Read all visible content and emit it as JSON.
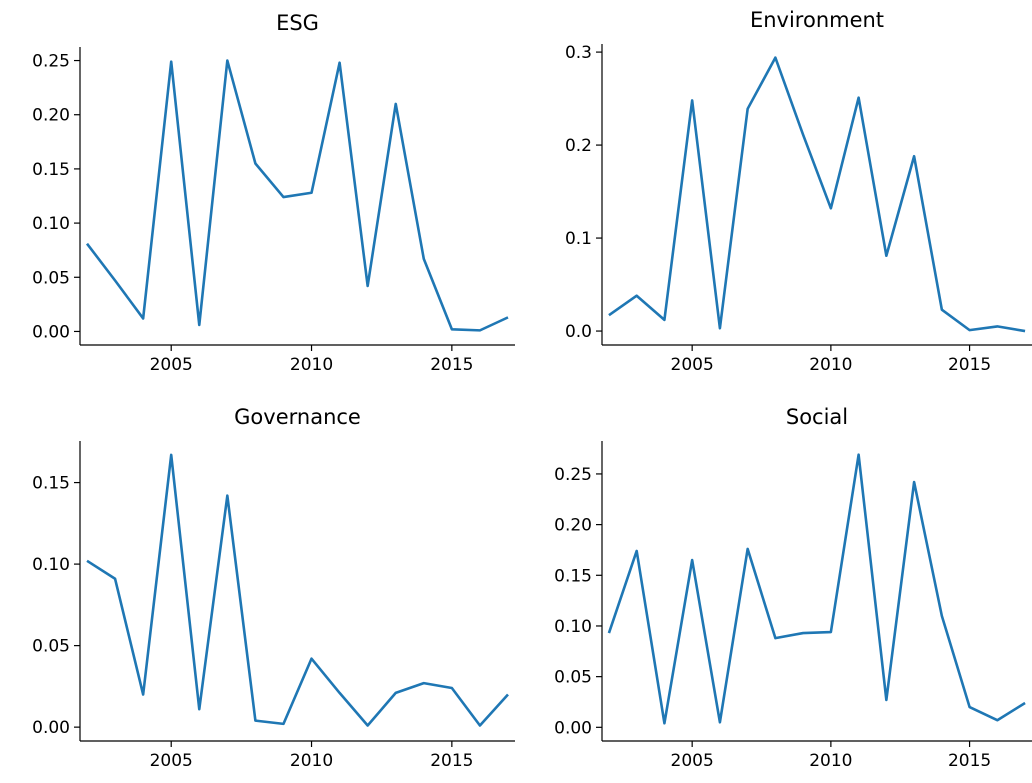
{
  "chart_data": [
    {
      "type": "line",
      "title": "ESG",
      "xlabel": "",
      "ylabel": "",
      "x": [
        2002,
        2003,
        2004,
        2005,
        2006,
        2007,
        2008,
        2009,
        2010,
        2011,
        2012,
        2013,
        2014,
        2015,
        2016,
        2017
      ],
      "series": [
        {
          "values": [
            0.081,
            0.047,
            0.012,
            0.249,
            0.006,
            0.25,
            0.155,
            0.124,
            0.128,
            0.248,
            0.042,
            0.21,
            0.067,
            0.002,
            0.001,
            0.013
          ],
          "color": "#1f77b4"
        }
      ],
      "xlim": [
        2001.75,
        2017.25
      ],
      "ylim": [
        -0.0125,
        0.2625
      ],
      "xticks": [
        2005,
        2010,
        2015
      ],
      "yticks": [
        0.0,
        0.05,
        0.1,
        0.15,
        0.2,
        0.25
      ],
      "ytick_labels": [
        "0.00",
        "0.05",
        "0.10",
        "0.15",
        "0.20",
        "0.25"
      ],
      "xtick_labels": [
        "2005",
        "2010",
        "2015"
      ],
      "grid": false
    },
    {
      "type": "line",
      "title": "Environment",
      "xlabel": "",
      "ylabel": "",
      "x": [
        2002,
        2003,
        2004,
        2005,
        2006,
        2007,
        2008,
        2009,
        2010,
        2011,
        2012,
        2013,
        2014,
        2015,
        2016,
        2017
      ],
      "series": [
        {
          "values": [
            0.017,
            0.038,
            0.012,
            0.248,
            0.003,
            0.239,
            0.294,
            0.211,
            0.132,
            0.251,
            0.081,
            0.188,
            0.023,
            0.001,
            0.005,
            0.0
          ],
          "color": "#1f77b4"
        }
      ],
      "xlim": [
        2001.75,
        2017.25
      ],
      "ylim": [
        -0.015,
        0.3087
      ],
      "xticks": [
        2005,
        2010,
        2015
      ],
      "yticks": [
        0.0,
        0.1,
        0.2,
        0.3
      ],
      "ytick_labels": [
        "0.0",
        "0.1",
        "0.2",
        "0.3"
      ],
      "xtick_labels": [
        "2005",
        "2010",
        "2015"
      ],
      "grid": false
    },
    {
      "type": "line",
      "title": "Governance",
      "xlabel": "",
      "ylabel": "",
      "x": [
        2002,
        2003,
        2004,
        2005,
        2006,
        2007,
        2008,
        2009,
        2010,
        2011,
        2012,
        2013,
        2014,
        2015,
        2016,
        2017
      ],
      "series": [
        {
          "values": [
            0.102,
            0.091,
            0.02,
            0.167,
            0.011,
            0.142,
            0.004,
            0.002,
            0.042,
            0.021,
            0.001,
            0.021,
            0.027,
            0.024,
            0.001,
            0.02
          ],
          "color": "#1f77b4"
        }
      ],
      "xlim": [
        2001.75,
        2017.25
      ],
      "ylim": [
        -0.0085,
        0.1755
      ],
      "xticks": [
        2005,
        2010,
        2015
      ],
      "yticks": [
        0.0,
        0.05,
        0.1,
        0.15
      ],
      "ytick_labels": [
        "0.00",
        "0.05",
        "0.10",
        "0.15"
      ],
      "xtick_labels": [
        "2005",
        "2010",
        "2015"
      ],
      "grid": false
    },
    {
      "type": "line",
      "title": "Social",
      "xlabel": "",
      "ylabel": "",
      "x": [
        2002,
        2003,
        2004,
        2005,
        2006,
        2007,
        2008,
        2009,
        2010,
        2011,
        2012,
        2013,
        2014,
        2015,
        2016,
        2017
      ],
      "series": [
        {
          "values": [
            0.093,
            0.174,
            0.004,
            0.165,
            0.005,
            0.176,
            0.088,
            0.093,
            0.094,
            0.269,
            0.027,
            0.242,
            0.11,
            0.02,
            0.007,
            0.024
          ],
          "color": "#1f77b4"
        }
      ],
      "xlim": [
        2001.75,
        2017.25
      ],
      "ylim": [
        -0.0135,
        0.2825
      ],
      "xticks": [
        2005,
        2010,
        2015
      ],
      "yticks": [
        0.0,
        0.05,
        0.1,
        0.15,
        0.2,
        0.25
      ],
      "ytick_labels": [
        "0.00",
        "0.05",
        "0.10",
        "0.15",
        "0.20",
        "0.25"
      ],
      "xtick_labels": [
        "2005",
        "2010",
        "2015"
      ],
      "grid": false
    }
  ]
}
